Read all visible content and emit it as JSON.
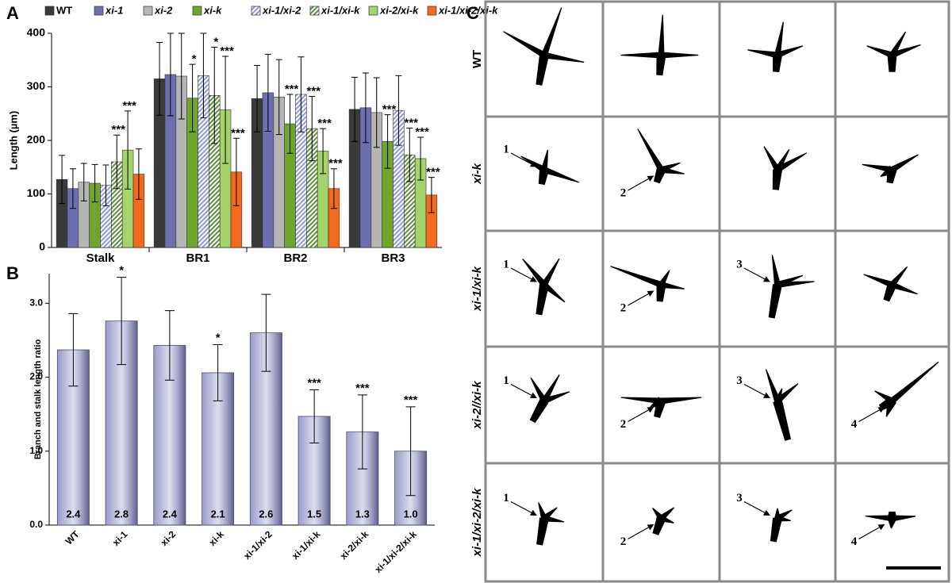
{
  "chart_data": [
    {
      "panel": "A",
      "type": "grouped_bar",
      "ylabel": "Length (µm)",
      "categories": [
        "Stalk",
        "BR1",
        "BR2",
        "BR3"
      ],
      "ylim": [
        0,
        400
      ],
      "yticks": [
        0,
        100,
        200,
        300,
        400
      ],
      "legend": "top",
      "series": [
        {
          "name": "WT",
          "color": "#3a3a3a",
          "italic": false,
          "hatch": false,
          "values": [
            127,
            315,
            278,
            258
          ],
          "errors": [
            45,
            68,
            62,
            60
          ],
          "annotations": [
            null,
            null,
            null,
            null
          ]
        },
        {
          "name": "xi-1",
          "color": "#6d6fae",
          "italic": true,
          "hatch": false,
          "values": [
            110,
            323,
            289,
            261
          ],
          "errors": [
            37,
            77,
            72,
            65
          ],
          "annotations": [
            null,
            null,
            null,
            null
          ]
        },
        {
          "name": "xi-2",
          "color": "#b5b5b5",
          "italic": true,
          "hatch": false,
          "values": [
            122,
            320,
            281,
            252
          ],
          "errors": [
            35,
            80,
            70,
            65
          ],
          "annotations": [
            null,
            null,
            null,
            null
          ]
        },
        {
          "name": "xi-k",
          "color": "#6ea52a",
          "italic": true,
          "hatch": false,
          "values": [
            120,
            279,
            231,
            198
          ],
          "errors": [
            35,
            63,
            55,
            50
          ],
          "annotations": [
            null,
            "*",
            "***",
            "***"
          ]
        },
        {
          "name": "xi-1/xi-2",
          "color": "#8f99d6",
          "italic": true,
          "hatch": true,
          "values": [
            116,
            321,
            286,
            256
          ],
          "errors": [
            38,
            79,
            70,
            65
          ],
          "annotations": [
            null,
            null,
            null,
            null
          ]
        },
        {
          "name": "xi-1/xi-k",
          "color": "#5f8f3e",
          "italic": true,
          "hatch": true,
          "values": [
            160,
            284,
            222,
            173
          ],
          "errors": [
            50,
            90,
            60,
            50
          ],
          "annotations": [
            "***",
            "*",
            "***",
            "***"
          ]
        },
        {
          "name": "xi-2/xi-k",
          "color": "#a3d36a",
          "italic": true,
          "hatch": false,
          "values": [
            182,
            257,
            180,
            166
          ],
          "errors": [
            73,
            100,
            42,
            40
          ],
          "annotations": [
            "***",
            "***",
            "***",
            "***"
          ]
        },
        {
          "name": "xi-1/xi-2/xi-k",
          "color": "#f36a1f",
          "italic": true,
          "hatch": false,
          "values": [
            137,
            141,
            110,
            98
          ],
          "errors": [
            47,
            63,
            37,
            33
          ],
          "annotations": [
            null,
            "***",
            "***",
            "***"
          ]
        }
      ]
    },
    {
      "panel": "B",
      "type": "bar",
      "ylabel": "Branch and stalk length ratio",
      "color": "#9a9ccb",
      "categories": [
        "WT",
        "xi-1",
        "xi-2",
        "xi-k",
        "xi-1/xi-2",
        "xi-1/xi-k",
        "xi-2/xi-k",
        "xi-1/xi-2/xi-k"
      ],
      "values": [
        2.37,
        2.76,
        2.43,
        2.06,
        2.6,
        1.47,
        1.26,
        1.0
      ],
      "value_labels": [
        "2.4",
        "2.8",
        "2.4",
        "2.1",
        "2.6",
        "1.5",
        "1.3",
        "1.0"
      ],
      "errors": [
        0.49,
        0.59,
        0.47,
        0.38,
        0.52,
        0.36,
        0.5,
        0.6
      ],
      "annotations": [
        null,
        "*",
        null,
        "*",
        null,
        "***",
        "***",
        "***"
      ],
      "ylim": [
        0,
        3.4
      ],
      "yticks": [
        {
          "value": 0,
          "label": "0.0"
        },
        {
          "value": 1,
          "label": "1.0"
        },
        {
          "value": 2,
          "label": "2.0"
        },
        {
          "value": 3,
          "label": "3.0"
        }
      ]
    }
  ],
  "panel_c": {
    "label": "C",
    "rows": [
      {
        "label": "WT",
        "cells": [
          null,
          null,
          null,
          null
        ]
      },
      {
        "label": "xi-k",
        "cells": [
          "1",
          "2",
          null,
          null
        ]
      },
      {
        "label": "xi-1/xi-k",
        "cells": [
          "1",
          "2",
          "3",
          null
        ]
      },
      {
        "label": "xi-2//xi-k",
        "cells": [
          "1",
          "2",
          "3",
          "4"
        ]
      },
      {
        "label": "xi-1/xi-2/xi-k",
        "cells": [
          "1",
          "2",
          "3",
          "4"
        ]
      }
    ]
  }
}
